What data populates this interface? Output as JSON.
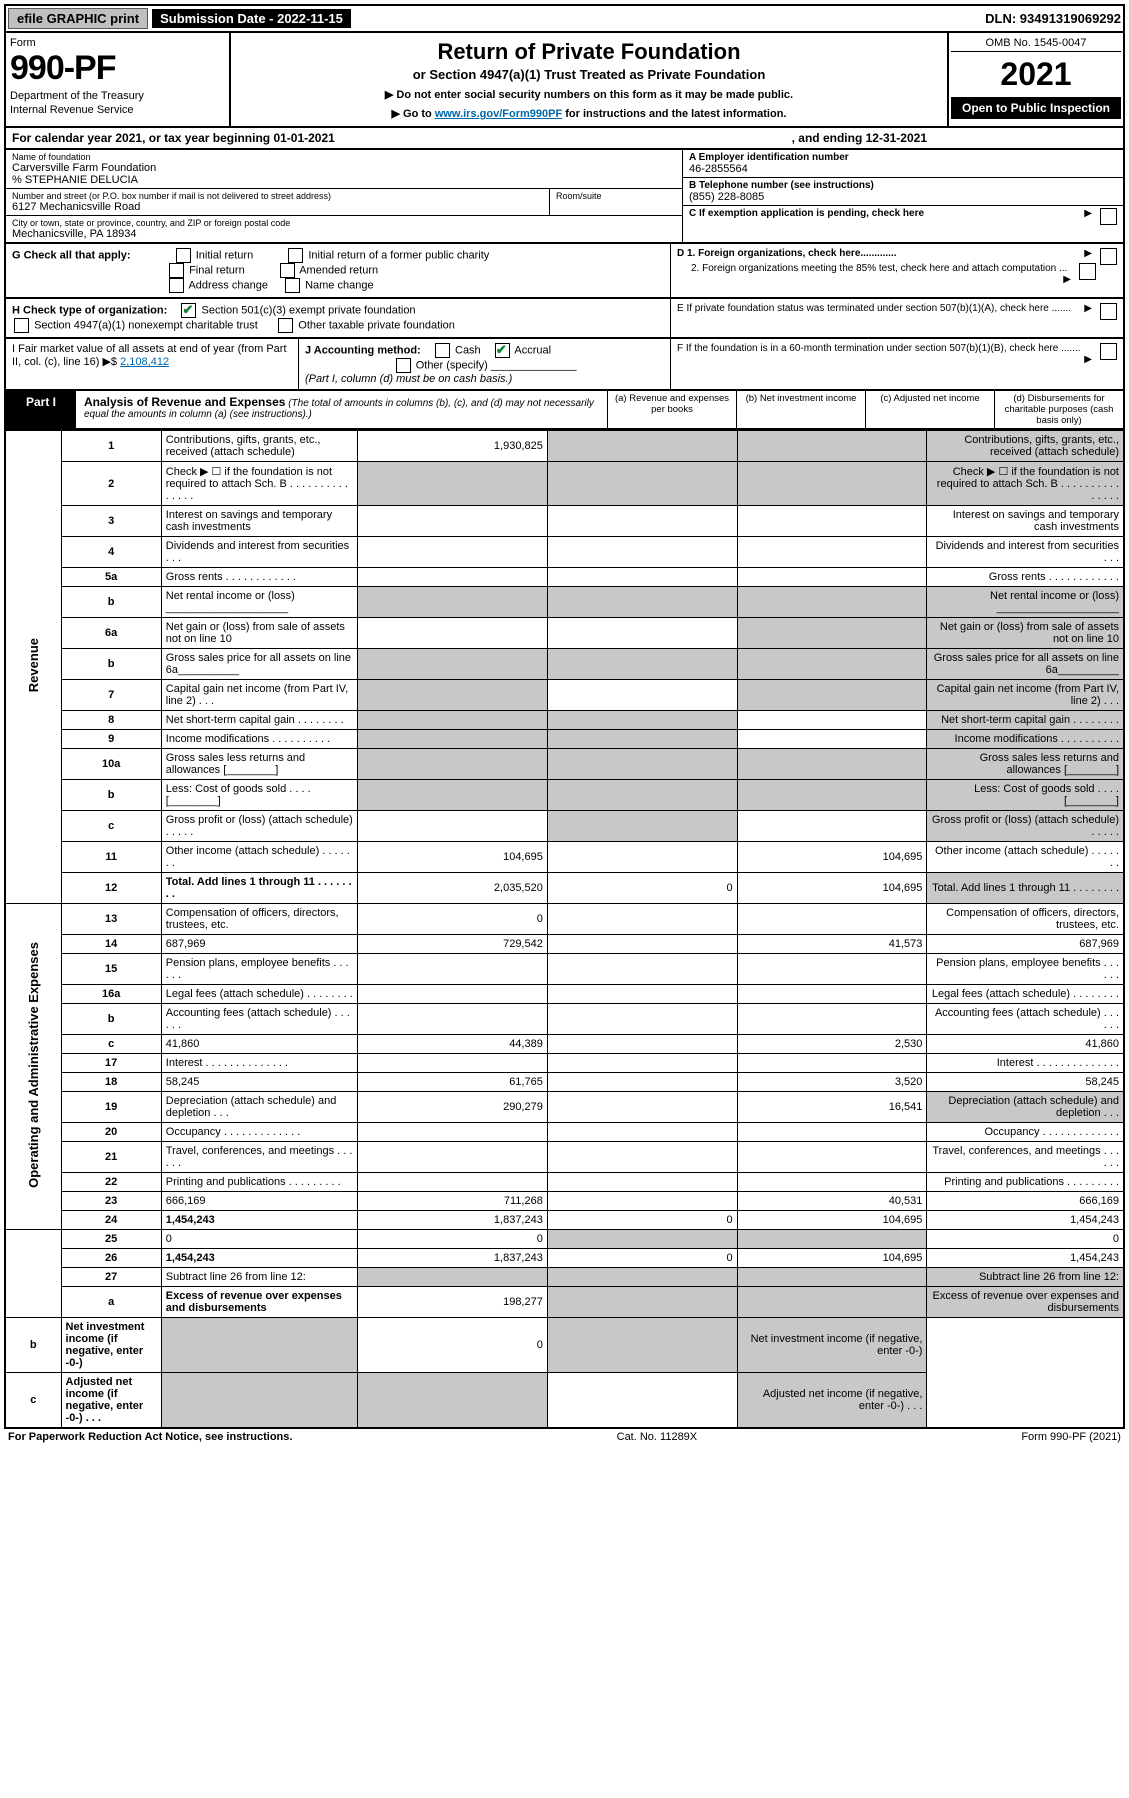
{
  "top": {
    "efile": "efile GRAPHIC print",
    "submission": "Submission Date - 2022-11-15",
    "dln": "DLN: 93491319069292"
  },
  "header": {
    "form_label": "Form",
    "form_no": "990-PF",
    "dept": "Department of the Treasury",
    "irs": "Internal Revenue Service",
    "title": "Return of Private Foundation",
    "sub1": "or Section 4947(a)(1) Trust Treated as Private Foundation",
    "instr1": "▶ Do not enter social security numbers on this form as it may be made public.",
    "instr2_pre": "▶ Go to ",
    "instr2_link": "www.irs.gov/Form990PF",
    "instr2_post": " for instructions and the latest information.",
    "omb": "OMB No. 1545-0047",
    "year": "2021",
    "open": "Open to Public Inspection"
  },
  "cal": {
    "line_a": "For calendar year 2021, or tax year beginning 01-01-2021",
    "line_b": ", and ending 12-31-2021"
  },
  "info": {
    "name_label": "Name of foundation",
    "name": "Carversville Farm Foundation",
    "co": "% STEPHANIE DELUCIA",
    "addr_label": "Number and street (or P.O. box number if mail is not delivered to street address)",
    "addr": "6127 Mechanicsville Road",
    "room_label": "Room/suite",
    "city_label": "City or town, state or province, country, and ZIP or foreign postal code",
    "city": "Mechanicsville, PA  18934",
    "ein_label": "A Employer identification number",
    "ein": "46-2855564",
    "tel_label": "B Telephone number (see instructions)",
    "tel": "(855) 228-8085",
    "c_label": "C If exemption application is pending, check here",
    "d1": "D 1. Foreign organizations, check here.............",
    "d2": "2. Foreign organizations meeting the 85% test, check here and attach computation ...",
    "e": "E  If private foundation status was terminated under section 507(b)(1)(A), check here .......",
    "f": "F  If the foundation is in a 60-month termination under section 507(b)(1)(B), check here .......",
    "g_label": "G Check all that apply:",
    "g_opts": [
      "Initial return",
      "Initial return of a former public charity",
      "Final return",
      "Amended return",
      "Address change",
      "Name change"
    ],
    "h_label": "H Check type of organization:",
    "h1": "Section 501(c)(3) exempt private foundation",
    "h2": "Section 4947(a)(1) nonexempt charitable trust",
    "h3": "Other taxable private foundation",
    "i_label": "I Fair market value of all assets at end of year (from Part II, col. (c), line 16) ▶$",
    "i_val": "2,108,412",
    "j_label": "J Accounting method:",
    "j_cash": "Cash",
    "j_accrual": "Accrual",
    "j_other": "Other (specify)",
    "j_note": "(Part I, column (d) must be on cash basis.)"
  },
  "part1": {
    "label": "Part I",
    "title": "Analysis of Revenue and Expenses",
    "note": "(The total of amounts in columns (b), (c), and (d) may not necessarily equal the amounts in column (a) (see instructions).)",
    "col_a": "(a)   Revenue and expenses per books",
    "col_b": "(b)   Net investment income",
    "col_c": "(c)   Adjusted net income",
    "col_d": "(d)   Disbursements for charitable purposes (cash basis only)"
  },
  "sections": {
    "revenue": "Revenue",
    "expenses": "Operating and Administrative Expenses"
  },
  "rows": [
    {
      "n": "1",
      "d": "Contributions, gifts, grants, etc., received (attach schedule)",
      "a": "1,930,825",
      "b_grey": true,
      "c_grey": true,
      "d_grey": true
    },
    {
      "n": "2",
      "d": "Check ▶ ☐ if the foundation is not required to attach Sch. B   .  .  .  .  .  .  .  .  .  .  .  .  .  .  .",
      "row_grey": true
    },
    {
      "n": "3",
      "d": "Interest on savings and temporary cash investments"
    },
    {
      "n": "4",
      "d": "Dividends and interest from securities    .   .   ."
    },
    {
      "n": "5a",
      "d": "Gross rents    .   .   .   .   .   .   .   .   .   .   .   ."
    },
    {
      "n": "b",
      "d": "Net rental income or (loss) ____________________",
      "b_grey": true,
      "c_grey": true,
      "d_grey": true,
      "a_grey": true
    },
    {
      "n": "6a",
      "d": "Net gain or (loss) from sale of assets not on line 10",
      "c_grey": true,
      "d_grey": true
    },
    {
      "n": "b",
      "d": "Gross sales price for all assets on line 6a__________",
      "row_grey": true
    },
    {
      "n": "7",
      "d": "Capital gain net income (from Part IV, line 2)    .   .   .",
      "a_grey": true,
      "c_grey": true,
      "d_grey": true
    },
    {
      "n": "8",
      "d": "Net short-term capital gain  .   .   .   .   .   .   .   .",
      "a_grey": true,
      "b_grey": true,
      "d_grey": true
    },
    {
      "n": "9",
      "d": "Income modifications .   .   .   .   .   .   .   .   .   .",
      "a_grey": true,
      "b_grey": true,
      "d_grey": true
    },
    {
      "n": "10a",
      "d": "Gross sales less returns and allowances  [________]",
      "row_grey": true
    },
    {
      "n": "b",
      "d": "Less: Cost of goods sold     .   .   .   .   [________]",
      "row_grey": true
    },
    {
      "n": "c",
      "d": "Gross profit or (loss) (attach schedule)      .   .   .   .   .",
      "b_grey": true,
      "d_grey": true
    },
    {
      "n": "11",
      "d": "Other income (attach schedule)    .   .   .   .   .   .   .",
      "a": "104,695",
      "c": "104,695"
    },
    {
      "n": "12",
      "d": "Total. Add lines 1 through 11   .   .   .   .   .   .   .   .",
      "bold": true,
      "a": "2,035,520",
      "b": "0",
      "c": "104,695",
      "d_grey": true
    },
    {
      "n": "13",
      "d": "Compensation of officers, directors, trustees, etc.",
      "a": "0"
    },
    {
      "n": "14",
      "d": "687,969",
      "a": "729,542",
      "c": "41,573"
    },
    {
      "n": "15",
      "d": "Pension plans, employee benefits .   .   .   .   .   ."
    },
    {
      "n": "16a",
      "d": "Legal fees (attach schedule) .   .   .   .   .   .   .   ."
    },
    {
      "n": "b",
      "d": "Accounting fees (attach schedule) .   .   .   .   .   ."
    },
    {
      "n": "c",
      "d": "41,860",
      "a": "44,389",
      "c": "2,530"
    },
    {
      "n": "17",
      "d": "Interest .   .   .   .   .   .   .   .   .   .   .   .   .   ."
    },
    {
      "n": "18",
      "d": "58,245",
      "a": "61,765",
      "c": "3,520"
    },
    {
      "n": "19",
      "d": "Depreciation (attach schedule) and depletion    .   .   .",
      "a": "290,279",
      "c": "16,541",
      "d_grey": true
    },
    {
      "n": "20",
      "d": "Occupancy .   .   .   .   .   .   .   .   .   .   .   .   ."
    },
    {
      "n": "21",
      "d": "Travel, conferences, and meetings .   .   .   .   .   ."
    },
    {
      "n": "22",
      "d": "Printing and publications .   .   .   .   .   .   .   .   ."
    },
    {
      "n": "23",
      "d": "666,169",
      "a": "711,268",
      "c": "40,531"
    },
    {
      "n": "24",
      "d": "1,454,243",
      "bold": true,
      "a": "1,837,243",
      "b": "0",
      "c": "104,695"
    },
    {
      "n": "25",
      "d": "0",
      "a": "0",
      "b_grey": true,
      "c_grey": true
    },
    {
      "n": "26",
      "d": "1,454,243",
      "bold": true,
      "a": "1,837,243",
      "b": "0",
      "c": "104,695"
    },
    {
      "n": "27",
      "d": "Subtract line 26 from line 12:",
      "row_grey_amts": true
    },
    {
      "n": "a",
      "d": "Excess of revenue over expenses and disbursements",
      "bold": true,
      "a": "198,277",
      "b_grey": true,
      "c_grey": true,
      "d_grey": true
    },
    {
      "n": "b",
      "d": "Net investment income (if negative, enter -0-)",
      "bold": true,
      "a_grey": true,
      "b": "0",
      "c_grey": true,
      "d_grey": true
    },
    {
      "n": "c",
      "d": "Adjusted net income (if negative, enter -0-)    .   .   .",
      "bold": true,
      "a_grey": true,
      "b_grey": true,
      "d_grey": true
    }
  ],
  "footer": {
    "left": "For Paperwork Reduction Act Notice, see instructions.",
    "mid": "Cat. No. 11289X",
    "right": "Form 990-PF (2021)"
  }
}
